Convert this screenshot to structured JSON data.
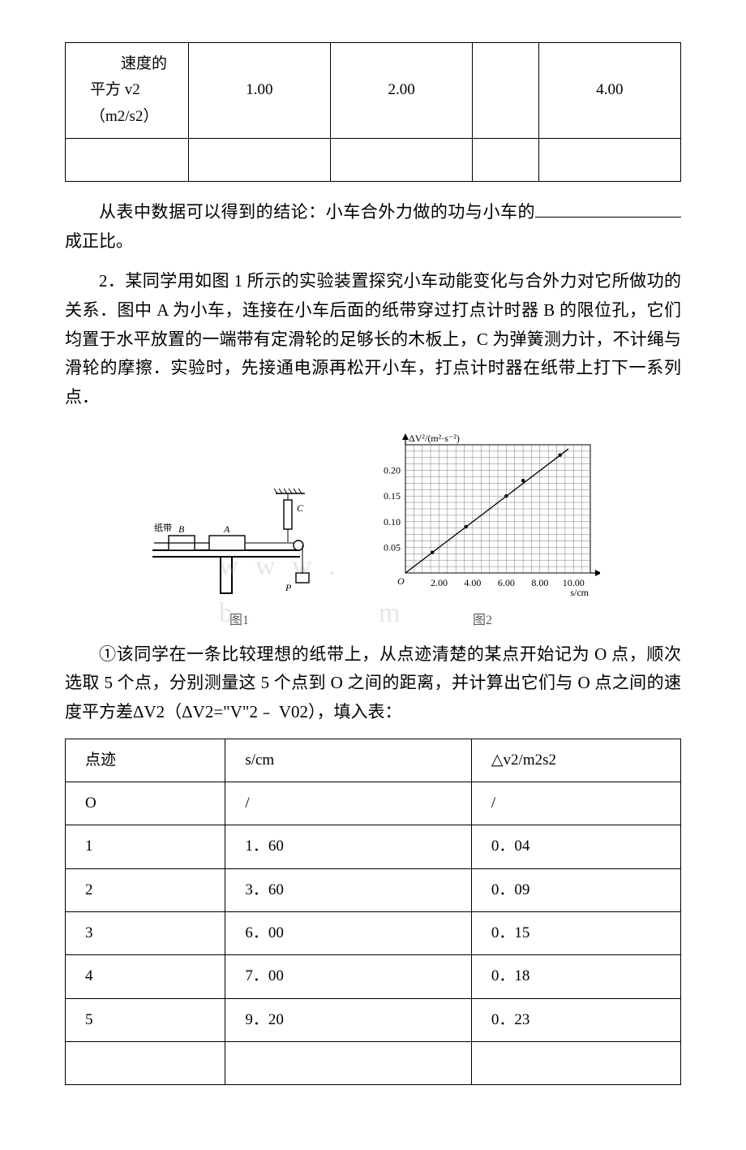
{
  "table1": {
    "row1": {
      "hdr_line": "　　速度的平方 v2（m2/s2）",
      "c1": "1.00",
      "c2": "2.00",
      "c3": "",
      "c4": "4.00"
    },
    "row2": {
      "hdr": "",
      "c1": "",
      "c2": "",
      "c3": "",
      "c4": ""
    }
  },
  "para_conclusion_a": "从表中数据可以得到的结论：小车合外力做的功与小车的",
  "para_conclusion_b": "成正比。",
  "para_q2": "2．某同学用如图 1 所示的实验装置探究小车动能变化与合外力对它所做功的关系．图中 A 为小车，连接在小车后面的纸带穿过打点计时器 B 的限位孔，它们均置于水平放置的一端带有定滑轮的足够长的木板上，C 为弹簧测力计，不计绳与滑轮的摩擦．实验时，先接通电源再松开小车，打点计时器在纸带上打下一系列点．",
  "fig1_label": "图1",
  "fig2_label": "图2",
  "fig2_yaxis": "ΔV²/(m²·s⁻²)",
  "fig2_xaxis": "s/cm",
  "chart": {
    "type": "scatter-line",
    "ylim": [
      0,
      0.25
    ],
    "yticks": [
      0.05,
      0.1,
      0.15,
      0.2
    ],
    "xlim": [
      0,
      11
    ],
    "xticks": [
      2.0,
      4.0,
      6.0,
      8.0,
      10.0
    ],
    "grid_color": "#7a7a7a",
    "axis_color": "#000000",
    "point_color": "#000000",
    "bg": "#ffffff",
    "points": [
      [
        1.6,
        0.04
      ],
      [
        3.6,
        0.09
      ],
      [
        6.0,
        0.15
      ],
      [
        7.0,
        0.18
      ],
      [
        9.2,
        0.23
      ]
    ],
    "font_size": 12
  },
  "para_sub1": "①该同学在一条比较理想的纸带上，从点迹清楚的某点开始记为 O 点，顺次选取 5 个点，分别测量这 5 个点到 O 之间的距离，并计算出它们与 O 点之间的速度平方差ΔV2（ΔV2=\"V\"2﹣ V02），填入表：",
  "table2": {
    "columns": [
      "点迹",
      "s/cm",
      "△v2/m2s2"
    ],
    "rows": [
      [
        "O",
        "/",
        "/"
      ],
      [
        "1",
        "1．60",
        "0．04"
      ],
      [
        "2",
        "3．60",
        "0．09"
      ],
      [
        "3",
        "6．00",
        "0．15"
      ],
      [
        "4",
        "7．00",
        "0．18"
      ],
      [
        "5",
        "9．20",
        "0．23"
      ],
      [
        "",
        "",
        ""
      ]
    ]
  },
  "fig1_labels": {
    "tape": "纸带",
    "a": "A",
    "b": "B",
    "c": "C",
    "p": "P"
  },
  "colors": {
    "text": "#000000",
    "border": "#000000",
    "bg": "#ffffff"
  }
}
